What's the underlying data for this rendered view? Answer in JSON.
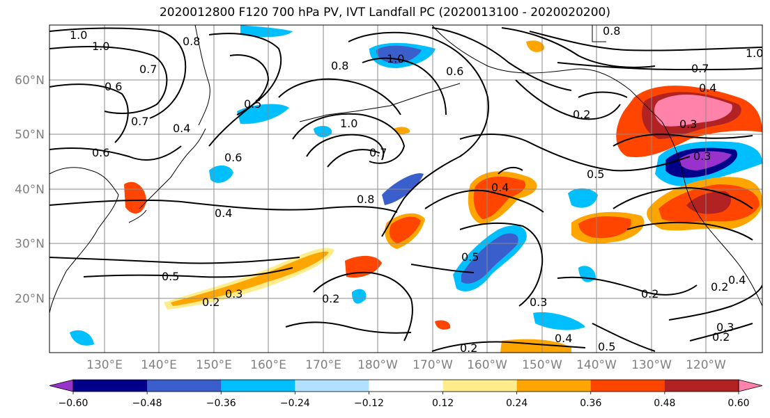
{
  "title": "2020012800 F120 700 hPa PV, IVT Landfall PC (2020013100 - 2020020200)",
  "lat_labels": [
    "60°N",
    "50°N",
    "40°N",
    "30°N",
    "20°N"
  ],
  "lon_labels": [
    "130°E",
    "140°E",
    "150°E",
    "160°E",
    "170°E",
    "180°W",
    "170°W",
    "160°W",
    "150°W",
    "140°W",
    "130°W",
    "120°W"
  ],
  "colorbar": {
    "ticks": [
      "−0.60",
      "−0.48",
      "−0.36",
      "−0.24",
      "−0.12",
      "0.12",
      "0.24",
      "0.36",
      "0.48",
      "0.60"
    ],
    "colors": [
      "#9932cc",
      "#00008b",
      "#3a5fcd",
      "#00bfff",
      "#b0e2ff",
      "#ffffff",
      "#ffec8b",
      "#ffa500",
      "#ff4500",
      "#b22222",
      "#ff82ab"
    ]
  },
  "contour_labels": [
    "1.0",
    "1.0",
    "0.6",
    "0.7",
    "0.7",
    "0.8",
    "0.4",
    "0.5",
    "0.6",
    "0.6",
    "0.4",
    "1.0",
    "0.7",
    "0.8",
    "0.6",
    "1.0",
    "0.8",
    "0.7",
    "0.4",
    "0.3",
    "0.3",
    "0.5",
    "0.4",
    "0.5",
    "0.2",
    "0.5",
    "0.2",
    "0.3",
    "0.2",
    "0.3",
    "0.2",
    "0.5",
    "0.4",
    "0.2",
    "0.3",
    "0.2",
    "0.4",
    "0.8",
    "1.0",
    "0.2"
  ]
}
